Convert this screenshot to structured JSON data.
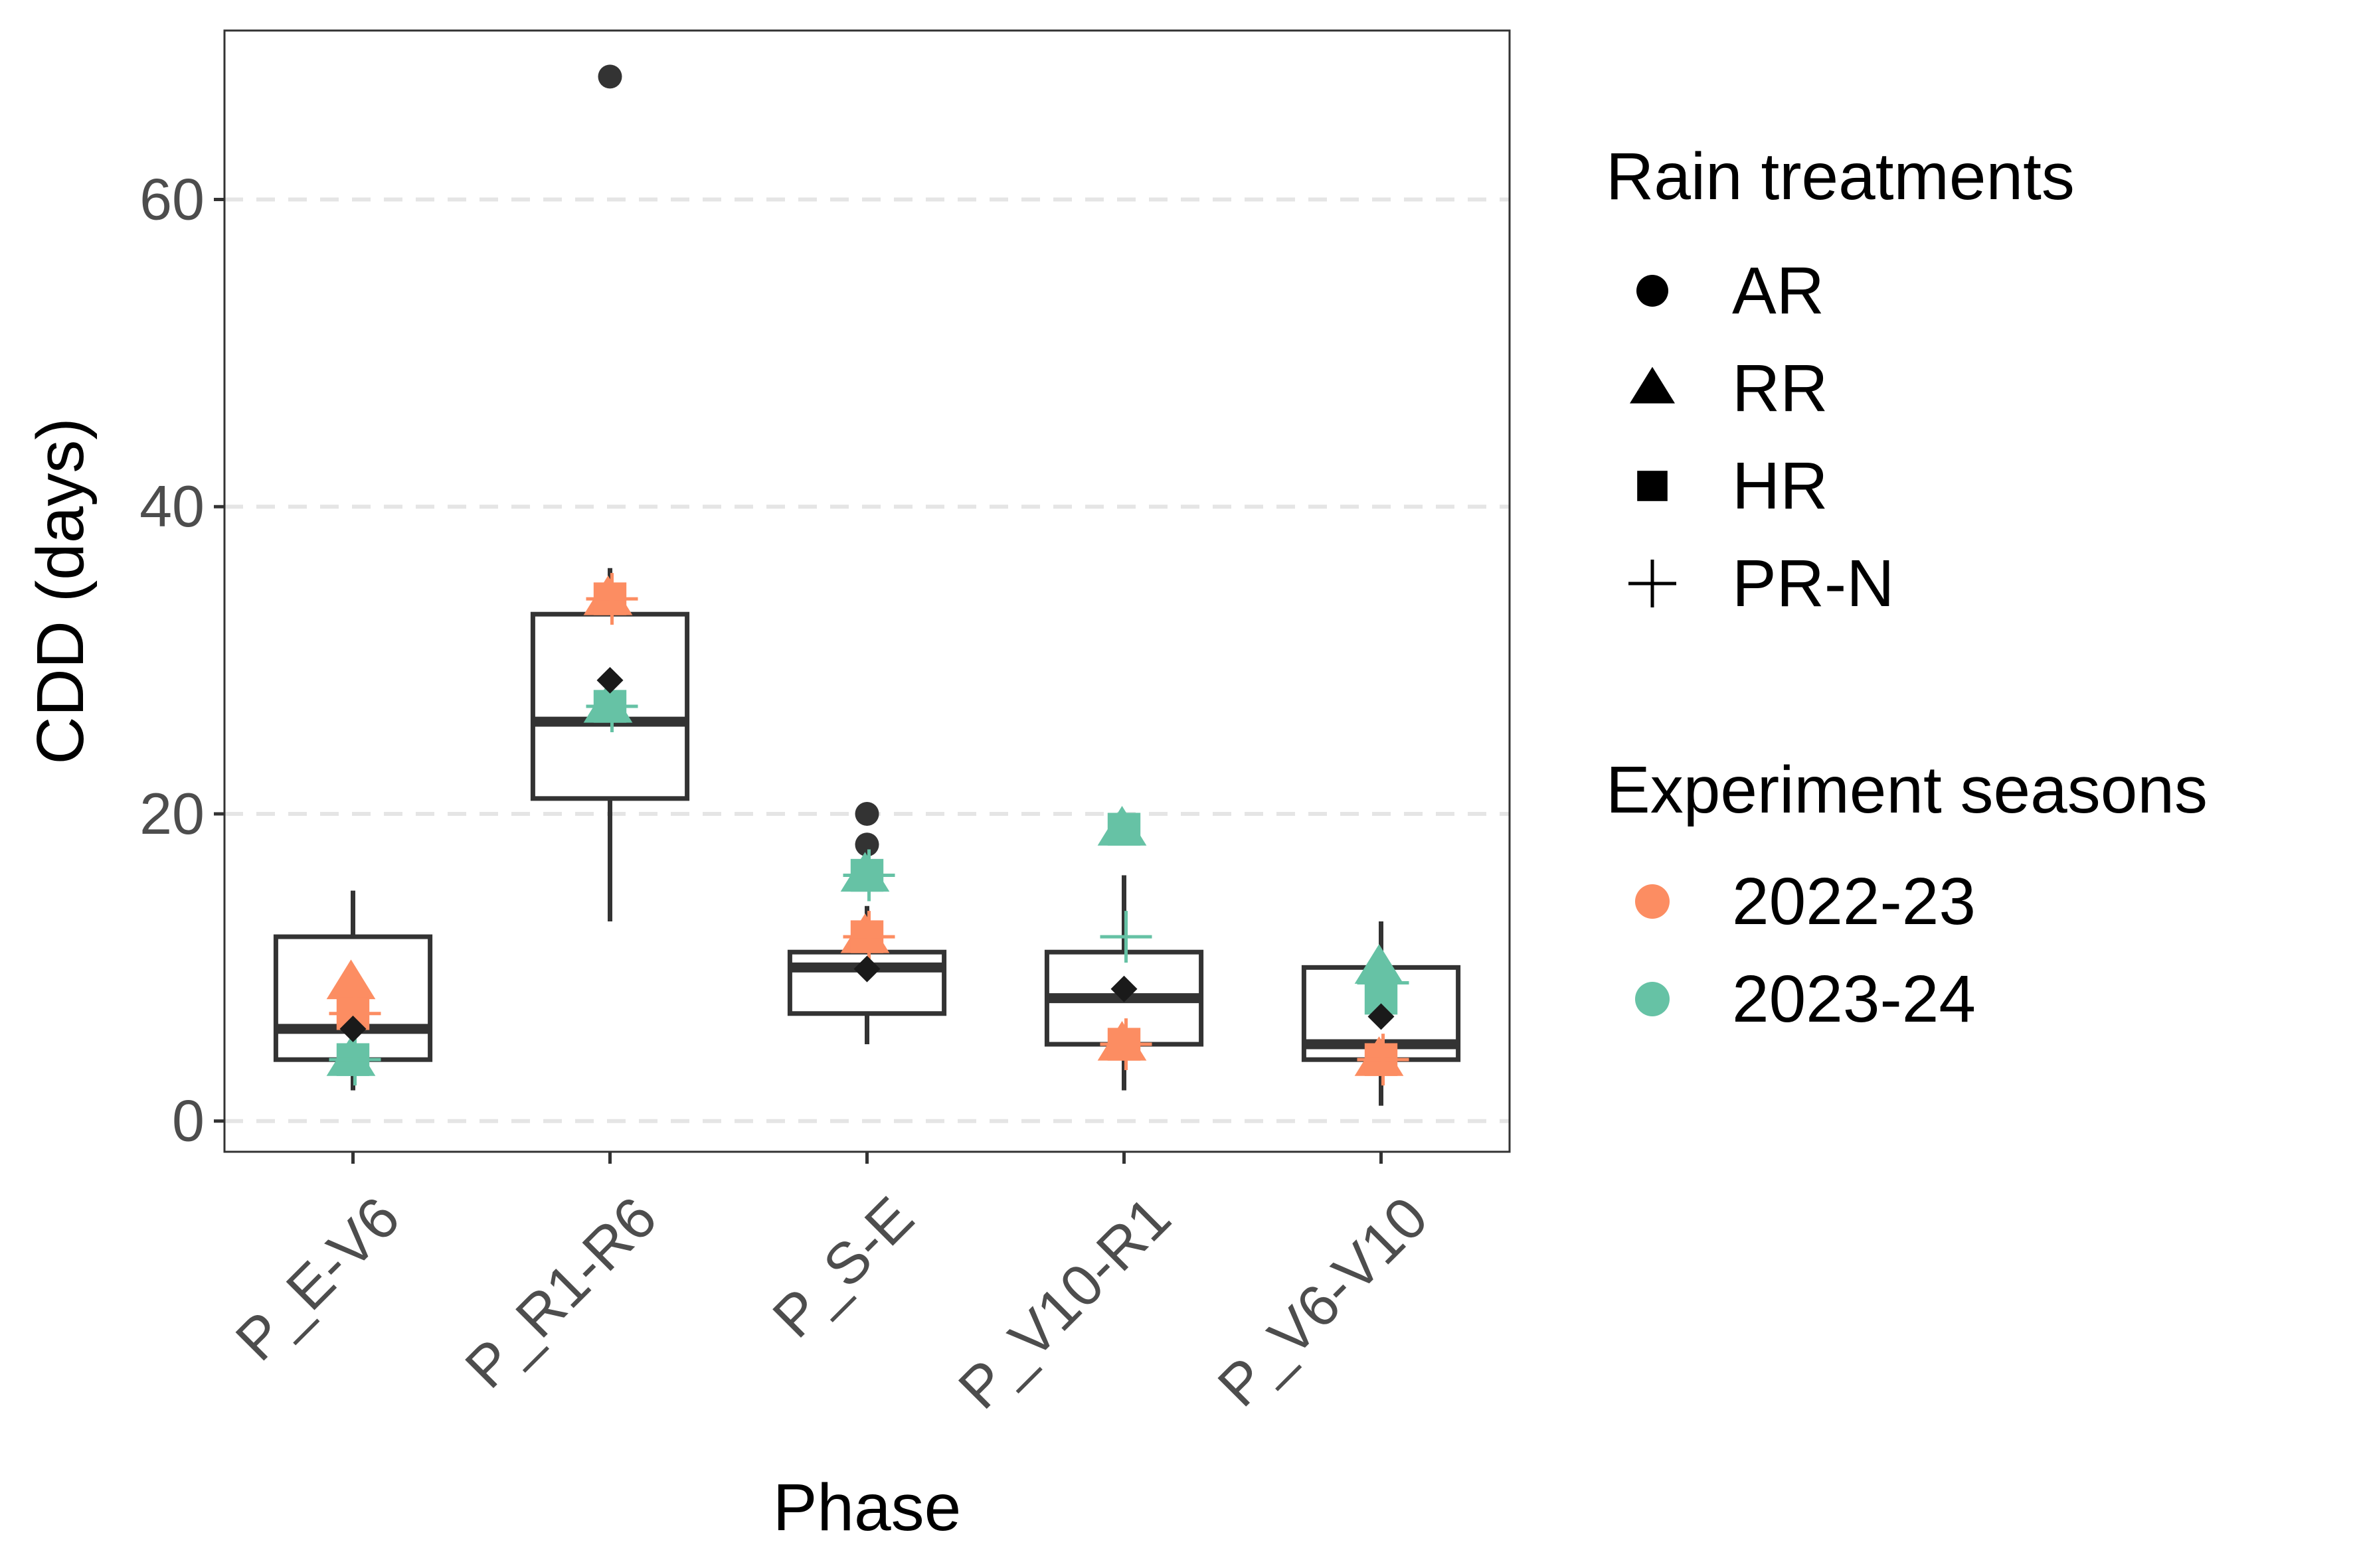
{
  "chart_data": {
    "type": "box",
    "xlabel": "Phase",
    "ylabel": "CDD (days)",
    "ylim": [
      -2,
      71
    ],
    "yticks": [
      0,
      20,
      40,
      60
    ],
    "grid": "major y dashed",
    "legend_placement": "right",
    "categories": [
      "P_E-V6",
      "P_R1-R6",
      "P_S-E",
      "P_V10-R1",
      "P_V6-V10"
    ],
    "boxes": [
      {
        "category": "P_E-V6",
        "whisker_low": 2,
        "q1": 4,
        "median": 6,
        "q3": 12,
        "whisker_high": 15,
        "outliers": []
      },
      {
        "category": "P_R1-R6",
        "whisker_low": 13,
        "q1": 21,
        "median": 26,
        "q3": 33,
        "whisker_high": 36,
        "outliers": [
          68
        ]
      },
      {
        "category": "P_S-E",
        "whisker_low": 5,
        "q1": 7,
        "median": 10,
        "q3": 11,
        "whisker_high": 14,
        "outliers": [
          18,
          20
        ]
      },
      {
        "category": "P_V10-R1",
        "whisker_low": 2,
        "q1": 5,
        "median": 8,
        "q3": 11,
        "whisker_high": 16,
        "outliers": []
      },
      {
        "category": "P_V6-V10",
        "whisker_low": 1,
        "q1": 4,
        "median": 5,
        "q3": 10,
        "whisker_high": 13,
        "outliers": []
      }
    ],
    "means": [
      {
        "category": "P_E-V6",
        "y": 6
      },
      {
        "category": "P_R1-R6",
        "y": 28.7
      },
      {
        "category": "P_S-E",
        "y": 9.9
      },
      {
        "category": "P_V10-R1",
        "y": 8.6
      },
      {
        "category": "P_V6-V10",
        "y": 6.8
      }
    ],
    "points": [
      {
        "category": "P_E-V6",
        "season": "2022-23",
        "treatment": "RR",
        "y": 9
      },
      {
        "category": "P_E-V6",
        "season": "2022-23",
        "treatment": "HR",
        "y": 7
      },
      {
        "category": "P_E-V6",
        "season": "2022-23",
        "treatment": "PR-N",
        "y": 7
      },
      {
        "category": "P_E-V6",
        "season": "2023-24",
        "treatment": "RR",
        "y": 4
      },
      {
        "category": "P_E-V6",
        "season": "2023-24",
        "treatment": "HR",
        "y": 4
      },
      {
        "category": "P_E-V6",
        "season": "2023-24",
        "treatment": "PR-N",
        "y": 4
      },
      {
        "category": "P_R1-R6",
        "season": "2022-23",
        "treatment": "RR",
        "y": 34
      },
      {
        "category": "P_R1-R6",
        "season": "2022-23",
        "treatment": "HR",
        "y": 34
      },
      {
        "category": "P_R1-R6",
        "season": "2022-23",
        "treatment": "PR-N",
        "y": 34
      },
      {
        "category": "P_R1-R6",
        "season": "2023-24",
        "treatment": "RR",
        "y": 27
      },
      {
        "category": "P_R1-R6",
        "season": "2023-24",
        "treatment": "HR",
        "y": 27
      },
      {
        "category": "P_R1-R6",
        "season": "2023-24",
        "treatment": "PR-N",
        "y": 27
      },
      {
        "category": "P_S-E",
        "season": "2022-23",
        "treatment": "RR",
        "y": 12
      },
      {
        "category": "P_S-E",
        "season": "2022-23",
        "treatment": "HR",
        "y": 12
      },
      {
        "category": "P_S-E",
        "season": "2022-23",
        "treatment": "PR-N",
        "y": 12
      },
      {
        "category": "P_S-E",
        "season": "2023-24",
        "treatment": "RR",
        "y": 16
      },
      {
        "category": "P_S-E",
        "season": "2023-24",
        "treatment": "HR",
        "y": 16
      },
      {
        "category": "P_S-E",
        "season": "2023-24",
        "treatment": "PR-N",
        "y": 16
      },
      {
        "category": "P_V10-R1",
        "season": "2022-23",
        "treatment": "RR",
        "y": 5
      },
      {
        "category": "P_V10-R1",
        "season": "2022-23",
        "treatment": "HR",
        "y": 5
      },
      {
        "category": "P_V10-R1",
        "season": "2022-23",
        "treatment": "PR-N",
        "y": 5
      },
      {
        "category": "P_V10-R1",
        "season": "2023-24",
        "treatment": "RR",
        "y": 19
      },
      {
        "category": "P_V10-R1",
        "season": "2023-24",
        "treatment": "HR",
        "y": 19
      },
      {
        "category": "P_V10-R1",
        "season": "2023-24",
        "treatment": "PR-N",
        "y": 12
      },
      {
        "category": "P_V6-V10",
        "season": "2022-23",
        "treatment": "RR",
        "y": 4
      },
      {
        "category": "P_V6-V10",
        "season": "2022-23",
        "treatment": "HR",
        "y": 4
      },
      {
        "category": "P_V6-V10",
        "season": "2022-23",
        "treatment": "PR-N",
        "y": 4
      },
      {
        "category": "P_V6-V10",
        "season": "2023-24",
        "treatment": "RR",
        "y": 10
      },
      {
        "category": "P_V6-V10",
        "season": "2023-24",
        "treatment": "HR",
        "y": 8
      },
      {
        "category": "P_V6-V10",
        "season": "2023-24",
        "treatment": "PR-N",
        "y": 9
      }
    ],
    "legend_shape": {
      "title": "Rain treatments",
      "entries": [
        {
          "label": "AR",
          "shape": "circle"
        },
        {
          "label": "RR",
          "shape": "triangle"
        },
        {
          "label": "HR",
          "shape": "square"
        },
        {
          "label": "PR-N",
          "shape": "plus"
        }
      ]
    },
    "legend_color": {
      "title": "Experiment seasons",
      "entries": [
        {
          "label": "2022-23",
          "color": "#FC8D62"
        },
        {
          "label": "2023-24",
          "color": "#66C2A5"
        }
      ]
    },
    "colors": {
      "box_outline": "#333333",
      "outlier": "#333333",
      "mean_marker": "#1a1a1a",
      "grid": "#e5e5e5",
      "panel_border": "#333333"
    }
  }
}
